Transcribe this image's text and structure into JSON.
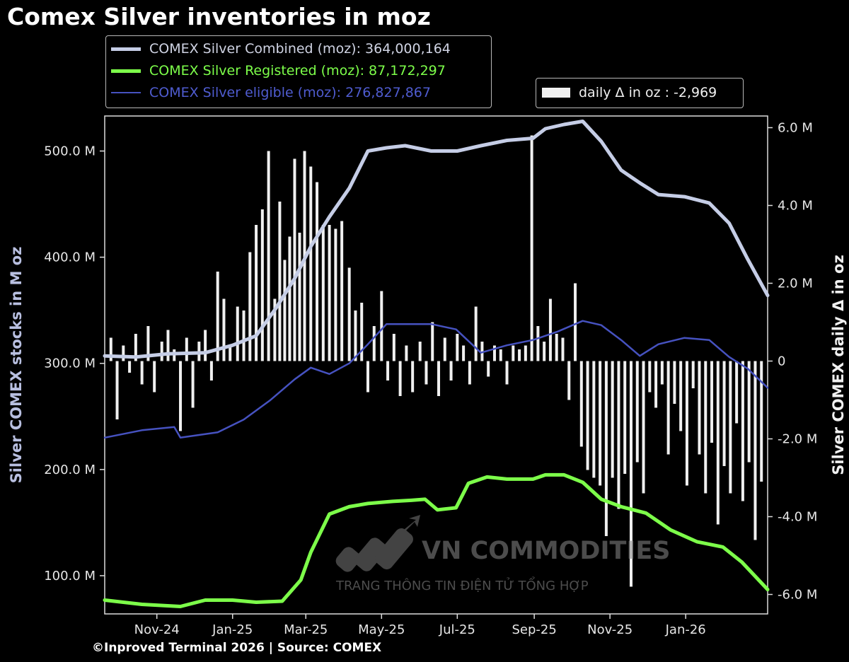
{
  "title": "Comex Silver inventories in moz",
  "footer": "©Inproved Terminal 2026 | Source: COMEX",
  "watermark": {
    "brand": "VN COMMODITIES",
    "tagline": "TRANG THÔNG TIN ĐIỆN TỬ TỔNG HỢP"
  },
  "legend_main": [
    {
      "label": "COMEX Silver Combined (moz): 364,000,164",
      "color": "#c5cde6"
    },
    {
      "label": "COMEX Silver Registered (moz): 87,172,297",
      "color": "#7dff4a"
    },
    {
      "label": "COMEX Silver eligible (moz): 276,827,867",
      "color": "#4652c0"
    }
  ],
  "legend_daily": {
    "label": "daily Δ in oz : -2,969",
    "color": "#f0f0f0"
  },
  "chart_data": {
    "type": "line",
    "x_range": [
      "2024-09-20",
      "2026-03-08"
    ],
    "x_ticks": [
      "Nov-24",
      "Jan-25",
      "Mar-25",
      "May-25",
      "Jul-25",
      "Sep-25",
      "Nov-25",
      "Jan-26"
    ],
    "y_left": {
      "label": "Silver COMEX stocks in M oz",
      "range": [
        64,
        533
      ],
      "ticks": [
        "100.0 M",
        "200.0 M",
        "300.0 M",
        "400.0 M",
        "500.0 M"
      ]
    },
    "y_right": {
      "label": "Silver COMEX daily Δ in oz",
      "range": [
        -6.5,
        6.3
      ],
      "ticks": [
        "-6.0 M",
        "-4.0 M",
        "-2.0 M",
        "0",
        "2.0 M",
        "4.0 M",
        "6.0 M"
      ]
    },
    "grid": false,
    "series": [
      {
        "name": "COMEX Silver Combined (moz)",
        "axis": "left",
        "points": [
          [
            "2024-09-20",
            307
          ],
          [
            "2024-10-15",
            306
          ],
          [
            "2024-11-10",
            309
          ],
          [
            "2024-12-10",
            310
          ],
          [
            "2025-01-01",
            317
          ],
          [
            "2025-01-20",
            326
          ],
          [
            "2025-02-05",
            352
          ],
          [
            "2025-02-20",
            380
          ],
          [
            "2025-03-05",
            410
          ],
          [
            "2025-03-20",
            438
          ],
          [
            "2025-04-05",
            465
          ],
          [
            "2025-04-20",
            500
          ],
          [
            "2025-05-05",
            503
          ],
          [
            "2025-05-20",
            505
          ],
          [
            "2025-06-10",
            500
          ],
          [
            "2025-07-01",
            500
          ],
          [
            "2025-07-20",
            505
          ],
          [
            "2025-08-10",
            510
          ],
          [
            "2025-08-31",
            512
          ],
          [
            "2025-09-10",
            521
          ],
          [
            "2025-09-25",
            525
          ],
          [
            "2025-10-10",
            528
          ],
          [
            "2025-10-25",
            509
          ],
          [
            "2025-11-10",
            482
          ],
          [
            "2025-11-25",
            470
          ],
          [
            "2025-12-10",
            459
          ],
          [
            "2025-12-31",
            457
          ],
          [
            "2026-01-20",
            451
          ],
          [
            "2026-02-05",
            432
          ],
          [
            "2026-02-20",
            398
          ],
          [
            "2026-03-08",
            364
          ]
        ]
      },
      {
        "name": "COMEX Silver Registered (moz)",
        "axis": "left",
        "points": [
          [
            "2024-09-20",
            77
          ],
          [
            "2024-10-20",
            73
          ],
          [
            "2024-11-20",
            71
          ],
          [
            "2024-12-10",
            77
          ],
          [
            "2025-01-01",
            77
          ],
          [
            "2025-01-20",
            75
          ],
          [
            "2025-02-10",
            76
          ],
          [
            "2025-02-25",
            96
          ],
          [
            "2025-03-05",
            122
          ],
          [
            "2025-03-20",
            158
          ],
          [
            "2025-04-05",
            165
          ],
          [
            "2025-04-20",
            168
          ],
          [
            "2025-05-10",
            170
          ],
          [
            "2025-05-25",
            171
          ],
          [
            "2025-06-05",
            172
          ],
          [
            "2025-06-15",
            162
          ],
          [
            "2025-06-30",
            164
          ],
          [
            "2025-07-10",
            187
          ],
          [
            "2025-07-25",
            193
          ],
          [
            "2025-08-10",
            191
          ],
          [
            "2025-08-31",
            191
          ],
          [
            "2025-09-10",
            195
          ],
          [
            "2025-09-25",
            195
          ],
          [
            "2025-10-10",
            188
          ],
          [
            "2025-10-25",
            172
          ],
          [
            "2025-11-10",
            165
          ],
          [
            "2025-11-30",
            159
          ],
          [
            "2025-12-20",
            143
          ],
          [
            "2026-01-10",
            132
          ],
          [
            "2026-01-31",
            127
          ],
          [
            "2026-02-15",
            113
          ],
          [
            "2026-03-08",
            87
          ]
        ]
      },
      {
        "name": "COMEX Silver eligible (moz)",
        "axis": "left",
        "points": [
          [
            "2024-09-20",
            230
          ],
          [
            "2024-10-20",
            237
          ],
          [
            "2024-11-15",
            240
          ],
          [
            "2024-11-20",
            230
          ],
          [
            "2024-12-20",
            235
          ],
          [
            "2025-01-10",
            247
          ],
          [
            "2025-01-31",
            265
          ],
          [
            "2025-02-20",
            285
          ],
          [
            "2025-03-05",
            296
          ],
          [
            "2025-03-20",
            290
          ],
          [
            "2025-04-05",
            300
          ],
          [
            "2025-04-20",
            318
          ],
          [
            "2025-05-05",
            337
          ],
          [
            "2025-05-20",
            337
          ],
          [
            "2025-06-10",
            337
          ],
          [
            "2025-06-30",
            332
          ],
          [
            "2025-07-20",
            310
          ],
          [
            "2025-08-10",
            317
          ],
          [
            "2025-08-31",
            322
          ],
          [
            "2025-09-20",
            330
          ],
          [
            "2025-10-10",
            340
          ],
          [
            "2025-10-25",
            336
          ],
          [
            "2025-11-10",
            322
          ],
          [
            "2025-11-25",
            307
          ],
          [
            "2025-12-10",
            318
          ],
          [
            "2025-12-31",
            324
          ],
          [
            "2026-01-20",
            322
          ],
          [
            "2026-02-05",
            306
          ],
          [
            "2026-02-20",
            295
          ],
          [
            "2026-03-08",
            277
          ]
        ]
      },
      {
        "name": "daily Δ in oz",
        "axis": "right",
        "type": "bar",
        "points": [
          [
            "2024-09-25",
            0.6
          ],
          [
            "2024-09-30",
            -1.5
          ],
          [
            "2024-10-05",
            0.4
          ],
          [
            "2024-10-10",
            -0.3
          ],
          [
            "2024-10-15",
            0.7
          ],
          [
            "2024-10-20",
            -0.6
          ],
          [
            "2024-10-25",
            0.9
          ],
          [
            "2024-10-30",
            -0.8
          ],
          [
            "2024-11-05",
            0.5
          ],
          [
            "2024-11-10",
            0.8
          ],
          [
            "2024-11-15",
            0.3
          ],
          [
            "2024-11-20",
            -1.8
          ],
          [
            "2024-11-25",
            0.6
          ],
          [
            "2024-11-30",
            -1.2
          ],
          [
            "2024-12-05",
            0.5
          ],
          [
            "2024-12-10",
            0.8
          ],
          [
            "2024-12-15",
            -0.5
          ],
          [
            "2024-12-20",
            2.3
          ],
          [
            "2024-12-25",
            1.6
          ],
          [
            "2024-12-30",
            0.4
          ],
          [
            "2025-01-05",
            1.4
          ],
          [
            "2025-01-10",
            1.3
          ],
          [
            "2025-01-15",
            2.8
          ],
          [
            "2025-01-20",
            3.5
          ],
          [
            "2025-01-25",
            3.9
          ],
          [
            "2025-01-30",
            5.4
          ],
          [
            "2025-02-04",
            1.6
          ],
          [
            "2025-02-08",
            4.1
          ],
          [
            "2025-02-12",
            2.6
          ],
          [
            "2025-02-16",
            3.2
          ],
          [
            "2025-02-20",
            5.2
          ],
          [
            "2025-02-24",
            3.3
          ],
          [
            "2025-02-28",
            5.4
          ],
          [
            "2025-03-05",
            5.0
          ],
          [
            "2025-03-10",
            4.6
          ],
          [
            "2025-03-15",
            3.5
          ],
          [
            "2025-03-20",
            3.5
          ],
          [
            "2025-03-25",
            3.4
          ],
          [
            "2025-03-30",
            3.6
          ],
          [
            "2025-04-05",
            2.4
          ],
          [
            "2025-04-10",
            1.3
          ],
          [
            "2025-04-15",
            1.5
          ],
          [
            "2025-04-20",
            -0.8
          ],
          [
            "2025-04-25",
            0.9
          ],
          [
            "2025-05-01",
            1.8
          ],
          [
            "2025-05-06",
            -0.5
          ],
          [
            "2025-05-11",
            0.7
          ],
          [
            "2025-05-16",
            -0.9
          ],
          [
            "2025-05-21",
            0.4
          ],
          [
            "2025-05-26",
            -0.8
          ],
          [
            "2025-06-01",
            0.5
          ],
          [
            "2025-06-06",
            -0.6
          ],
          [
            "2025-06-11",
            1.0
          ],
          [
            "2025-06-16",
            -0.9
          ],
          [
            "2025-06-21",
            0.6
          ],
          [
            "2025-06-26",
            -0.5
          ],
          [
            "2025-07-01",
            0.7
          ],
          [
            "2025-07-06",
            0.4
          ],
          [
            "2025-07-11",
            -0.6
          ],
          [
            "2025-07-16",
            1.4
          ],
          [
            "2025-07-21",
            0.5
          ],
          [
            "2025-07-26",
            -0.4
          ],
          [
            "2025-07-31",
            0.4
          ],
          [
            "2025-08-05",
            0.3
          ],
          [
            "2025-08-10",
            -0.6
          ],
          [
            "2025-08-15",
            0.4
          ],
          [
            "2025-08-20",
            0.3
          ],
          [
            "2025-08-25",
            0.4
          ],
          [
            "2025-08-30",
            5.8
          ],
          [
            "2025-09-04",
            0.9
          ],
          [
            "2025-09-09",
            0.5
          ],
          [
            "2025-09-14",
            1.6
          ],
          [
            "2025-09-19",
            0.7
          ],
          [
            "2025-09-24",
            0.6
          ],
          [
            "2025-09-29",
            -1.0
          ],
          [
            "2025-10-04",
            2.0
          ],
          [
            "2025-10-09",
            -2.2
          ],
          [
            "2025-10-14",
            -2.8
          ],
          [
            "2025-10-19",
            -3.0
          ],
          [
            "2025-10-24",
            -3.2
          ],
          [
            "2025-10-29",
            -4.5
          ],
          [
            "2025-11-03",
            -3.0
          ],
          [
            "2025-11-08",
            -3.8
          ],
          [
            "2025-11-13",
            -2.9
          ],
          [
            "2025-11-18",
            -5.8
          ],
          [
            "2025-11-23",
            -2.6
          ],
          [
            "2025-11-28",
            -3.4
          ],
          [
            "2025-12-03",
            -0.8
          ],
          [
            "2025-12-08",
            -1.2
          ],
          [
            "2025-12-13",
            -0.6
          ],
          [
            "2025-12-18",
            -2.4
          ],
          [
            "2025-12-23",
            -1.1
          ],
          [
            "2025-12-28",
            -1.8
          ],
          [
            "2026-01-02",
            -3.2
          ],
          [
            "2026-01-07",
            -0.7
          ],
          [
            "2026-01-12",
            -2.4
          ],
          [
            "2026-01-17",
            -3.4
          ],
          [
            "2026-01-22",
            -2.1
          ],
          [
            "2026-01-27",
            -4.2
          ],
          [
            "2026-02-01",
            -2.7
          ],
          [
            "2026-02-06",
            -3.4
          ],
          [
            "2026-02-11",
            -1.6
          ],
          [
            "2026-02-16",
            -3.6
          ],
          [
            "2026-02-21",
            -2.6
          ],
          [
            "2026-02-26",
            -4.6
          ],
          [
            "2026-03-03",
            -3.1
          ]
        ]
      }
    ]
  }
}
